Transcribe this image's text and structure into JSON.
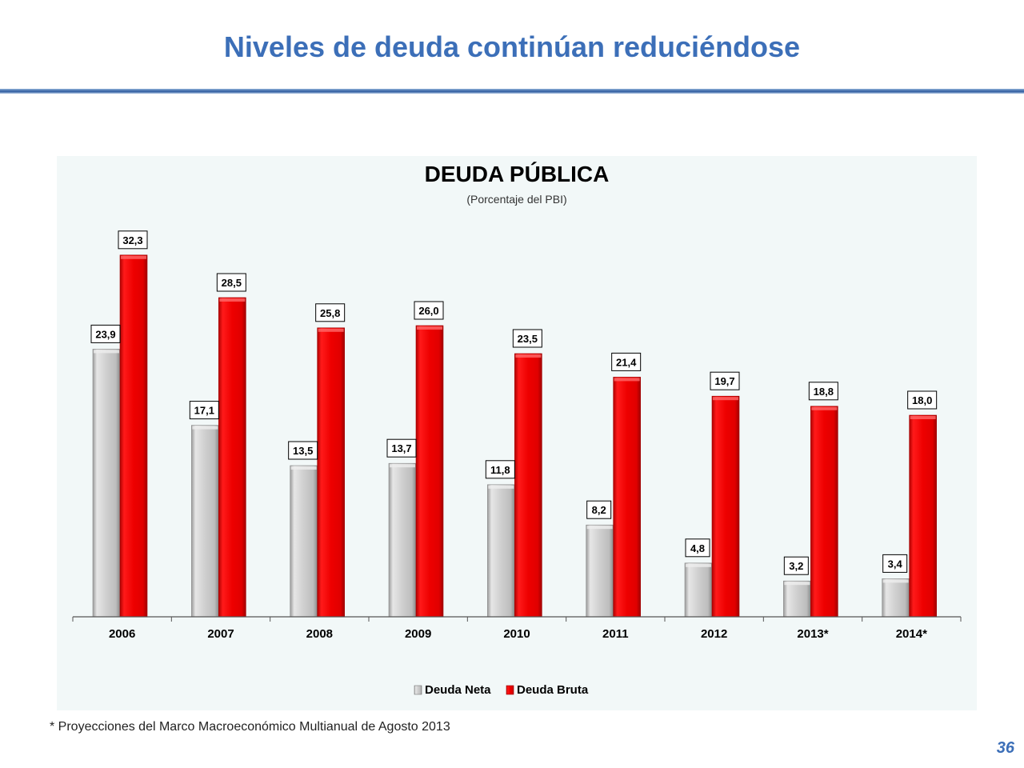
{
  "slide": {
    "title": "Niveles de deuda continúan reduciéndose",
    "footnote": "* Proyecciones del Marco Macroeconómico Multianual de Agosto 2013",
    "page_number": "36",
    "accent_color": "#3c6fb8"
  },
  "chart_data": {
    "type": "bar",
    "title": "DEUDA PÚBLICA",
    "subtitle": "(Porcentaje del PBI)",
    "xlabel": "",
    "ylabel": "",
    "categories": [
      "2006",
      "2007",
      "2008",
      "2009",
      "2010",
      "2011",
      "2012",
      "2013*",
      "2014*"
    ],
    "series": [
      {
        "name": "Deuda Neta",
        "color": "#c8c8c8",
        "values": [
          23.9,
          17.1,
          13.5,
          13.7,
          11.8,
          8.2,
          4.8,
          3.2,
          3.4
        ],
        "labels": [
          "23,9",
          "17,1",
          "13,5",
          "13,7",
          "11,8",
          "8,2",
          "4,8",
          "3,2",
          "3,4"
        ]
      },
      {
        "name": "Deuda Bruta",
        "color": "#ff0000",
        "values": [
          32.3,
          28.5,
          25.8,
          26.0,
          23.5,
          21.4,
          19.7,
          18.8,
          18.0
        ],
        "labels": [
          "32,3",
          "28,5",
          "25,8",
          "26,0",
          "23,5",
          "21,4",
          "19,7",
          "18,8",
          "18,0"
        ]
      }
    ],
    "ylim": [
      0,
      35
    ],
    "grid": false,
    "legend": "bottom",
    "data_labels": true
  }
}
